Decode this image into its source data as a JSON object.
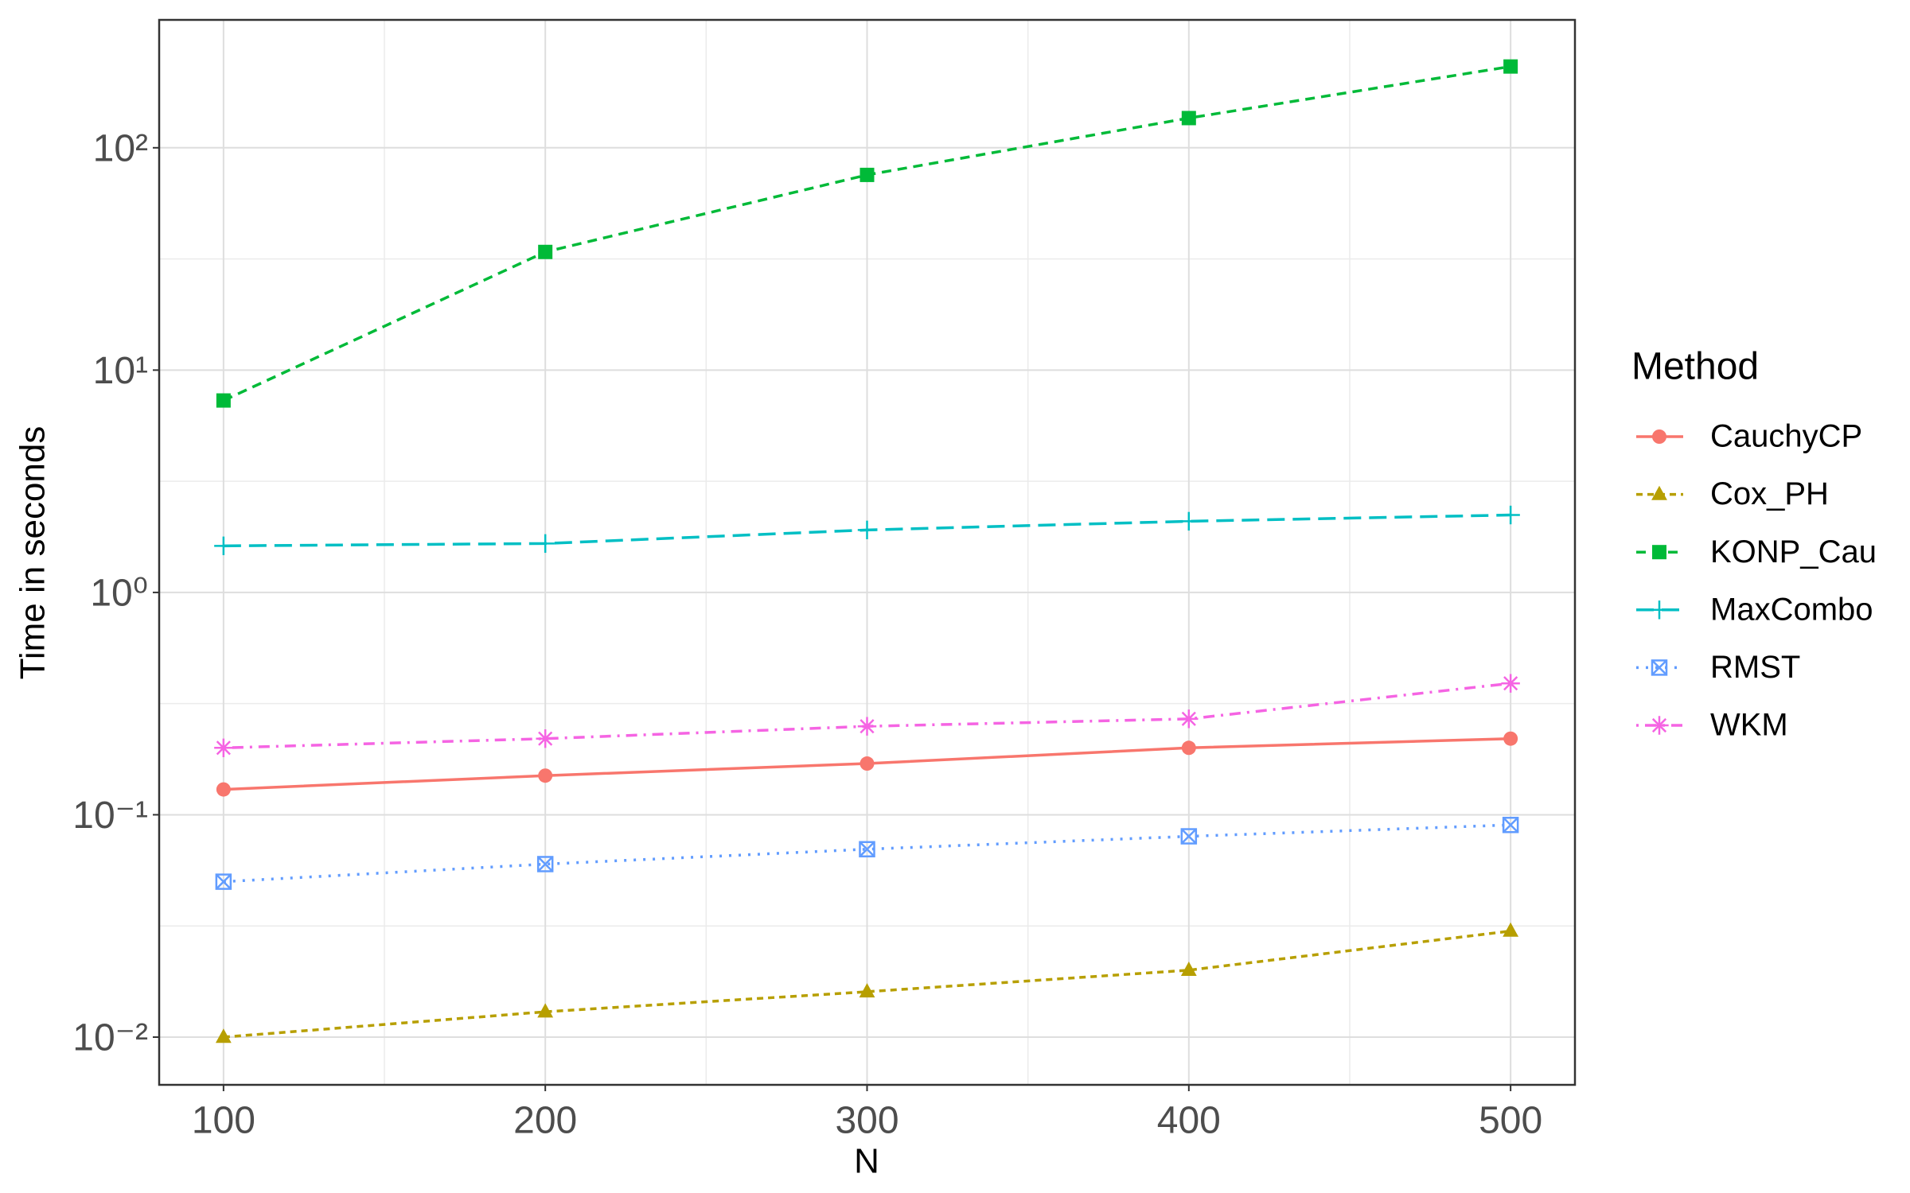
{
  "chart_data": {
    "type": "line",
    "x_label": "N",
    "y_label": "Time in seconds",
    "legend_title": "Method",
    "legend_position": "right",
    "log_y": true,
    "grid": true,
    "x": [
      100,
      200,
      300,
      400,
      500
    ],
    "xlim": [
      80,
      520
    ],
    "xticks": [
      100,
      200,
      300,
      400,
      500
    ],
    "ylim": [
      0.0061,
      376
    ],
    "yticks": [
      {
        "value": 0.01,
        "label": "10⁻²"
      },
      {
        "value": 0.1,
        "label": "10⁻¹"
      },
      {
        "value": 1,
        "label": "10⁰"
      },
      {
        "value": 10,
        "label": "10¹"
      },
      {
        "value": 100,
        "label": "10²"
      }
    ],
    "series": [
      {
        "name": "CauchyCP",
        "color": "#F8766D",
        "marker": "circle",
        "linestyle": "solid",
        "values": [
          0.13,
          0.15,
          0.17,
          0.2,
          0.22
        ]
      },
      {
        "name": "Cox_PH",
        "color": "#B79F00",
        "marker": "triangle",
        "linestyle": "dotted-dash",
        "values": [
          0.01,
          0.013,
          0.016,
          0.02,
          0.03
        ]
      },
      {
        "name": "KONP_Cau",
        "color": "#00BA38",
        "marker": "square",
        "linestyle": "dashed",
        "values": [
          7.3,
          34,
          75.5,
          136,
          232
        ]
      },
      {
        "name": "MaxCombo",
        "color": "#00BFC4",
        "marker": "plus",
        "linestyle": "longdash",
        "values": [
          1.62,
          1.66,
          1.91,
          2.09,
          2.23
        ]
      },
      {
        "name": "RMST",
        "color": "#619CFF",
        "marker": "square-x",
        "linestyle": "dotted",
        "values": [
          0.05,
          0.06,
          0.07,
          0.08,
          0.09
        ]
      },
      {
        "name": "WKM",
        "color": "#F564E3",
        "marker": "asterisk",
        "linestyle": "dotdash",
        "values": [
          0.2,
          0.22,
          0.25,
          0.27,
          0.39
        ]
      }
    ]
  }
}
